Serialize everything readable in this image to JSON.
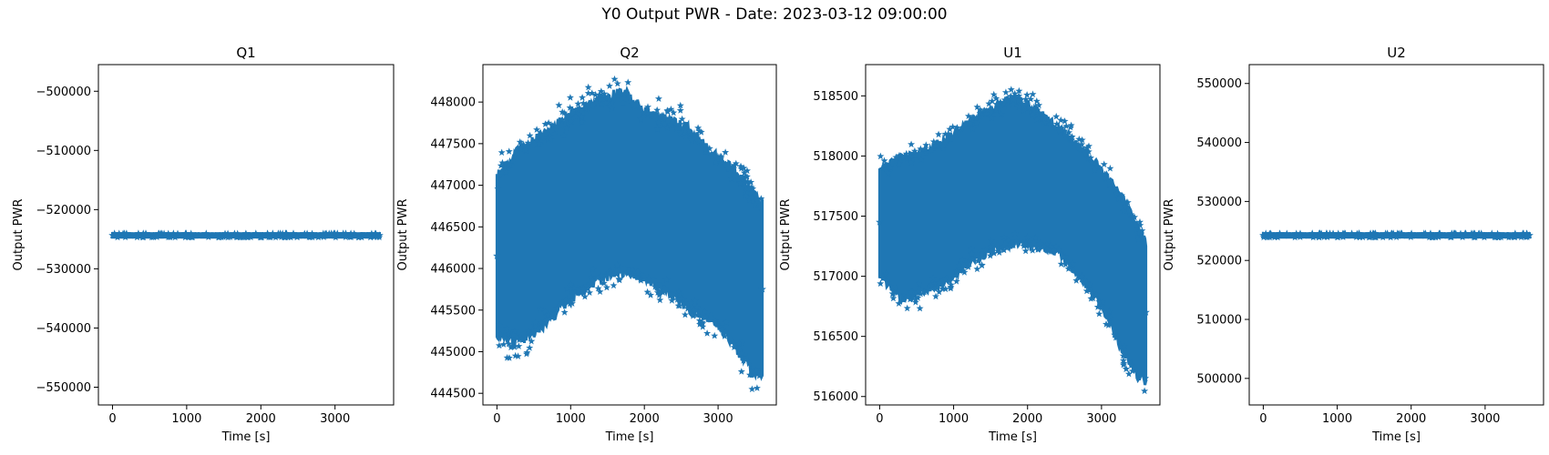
{
  "figure": {
    "suptitle": "Y0 Output PWR - Date: 2023-03-12 09:00:00"
  },
  "colors": {
    "series": "#1f77b4",
    "axis": "#000000"
  },
  "chart_data": [
    {
      "type": "scatter",
      "title": "Q1",
      "xlabel": "Time [s]",
      "ylabel": "Output PWR",
      "marker": "star",
      "xlim": [
        -190,
        3790
      ],
      "ylim": [
        -553000,
        -495500
      ],
      "xticks": [
        0,
        1000,
        2000,
        3000
      ],
      "xtick_labels": [
        "0",
        "1000",
        "2000",
        "3000"
      ],
      "yticks": [
        -550000,
        -540000,
        -530000,
        -520000,
        -510000,
        -500000
      ],
      "ytick_labels": [
        "−550000",
        "−540000",
        "−530000",
        "−520000",
        "−510000",
        "−500000"
      ],
      "x_range": [
        0,
        3600
      ],
      "y_band": [
        {
          "x": 0,
          "y_min": -524700,
          "y_max": -524000
        },
        {
          "x": 3600,
          "y_min": -524700,
          "y_max": -524000
        }
      ]
    },
    {
      "type": "scatter",
      "title": "Q2",
      "xlabel": "Time [s]",
      "ylabel": "Output PWR",
      "marker": "star",
      "xlim": [
        -190,
        3790
      ],
      "ylim": [
        444360,
        448450
      ],
      "xticks": [
        0,
        1000,
        2000,
        3000
      ],
      "xtick_labels": [
        "0",
        "1000",
        "2000",
        "3000"
      ],
      "yticks": [
        444500,
        445000,
        445500,
        446000,
        446500,
        447000,
        447500,
        448000
      ],
      "ytick_labels": [
        "444500",
        "445000",
        "445500",
        "446000",
        "446500",
        "447000",
        "447500",
        "448000"
      ],
      "x_range": [
        0,
        3600
      ],
      "y_band": [
        {
          "x": 0,
          "y_min": 445100,
          "y_max": 447200
        },
        {
          "x": 250,
          "y_min": 445000,
          "y_max": 447500
        },
        {
          "x": 500,
          "y_min": 445100,
          "y_max": 447650
        },
        {
          "x": 800,
          "y_min": 445350,
          "y_max": 447850
        },
        {
          "x": 1100,
          "y_min": 445600,
          "y_max": 448000
        },
        {
          "x": 1400,
          "y_min": 445750,
          "y_max": 448150
        },
        {
          "x": 1700,
          "y_min": 445850,
          "y_max": 448250
        },
        {
          "x": 2000,
          "y_min": 445800,
          "y_max": 448000
        },
        {
          "x": 2300,
          "y_min": 445600,
          "y_max": 447900
        },
        {
          "x": 2600,
          "y_min": 445400,
          "y_max": 447800
        },
        {
          "x": 2900,
          "y_min": 445300,
          "y_max": 447500
        },
        {
          "x": 3200,
          "y_min": 445000,
          "y_max": 447300
        },
        {
          "x": 3450,
          "y_min": 444650,
          "y_max": 447050
        },
        {
          "x": 3600,
          "y_min": 444600,
          "y_max": 446900
        }
      ]
    },
    {
      "type": "scatter",
      "title": "U1",
      "xlabel": "Time [s]",
      "ylabel": "Output PWR",
      "marker": "star",
      "xlim": [
        -190,
        3790
      ],
      "ylim": [
        515930,
        518760
      ],
      "xticks": [
        0,
        1000,
        2000,
        3000
      ],
      "xtick_labels": [
        "0",
        "1000",
        "2000",
        "3000"
      ],
      "yticks": [
        516000,
        516500,
        517000,
        517500,
        518000,
        518500
      ],
      "ytick_labels": [
        "516000",
        "516500",
        "517000",
        "517500",
        "518000",
        "518500"
      ],
      "x_range": [
        0,
        3600
      ],
      "y_band": [
        {
          "x": 0,
          "y_min": 516950,
          "y_max": 517950
        },
        {
          "x": 300,
          "y_min": 516750,
          "y_max": 518050
        },
        {
          "x": 600,
          "y_min": 516800,
          "y_max": 518100
        },
        {
          "x": 900,
          "y_min": 516900,
          "y_max": 518200
        },
        {
          "x": 1200,
          "y_min": 517050,
          "y_max": 518350
        },
        {
          "x": 1500,
          "y_min": 517150,
          "y_max": 518450
        },
        {
          "x": 1800,
          "y_min": 517200,
          "y_max": 518550
        },
        {
          "x": 2100,
          "y_min": 517200,
          "y_max": 518450
        },
        {
          "x": 2400,
          "y_min": 517150,
          "y_max": 518300
        },
        {
          "x": 2700,
          "y_min": 516950,
          "y_max": 518150
        },
        {
          "x": 3000,
          "y_min": 516700,
          "y_max": 517950
        },
        {
          "x": 3300,
          "y_min": 516300,
          "y_max": 517700
        },
        {
          "x": 3500,
          "y_min": 516100,
          "y_max": 517450
        },
        {
          "x": 3600,
          "y_min": 516050,
          "y_max": 517350
        }
      ]
    },
    {
      "type": "scatter",
      "title": "U2",
      "xlabel": "Time [s]",
      "ylabel": "Output PWR",
      "marker": "star",
      "xlim": [
        -190,
        3790
      ],
      "ylim": [
        495500,
        553200
      ],
      "xticks": [
        0,
        1000,
        2000,
        3000
      ],
      "xtick_labels": [
        "0",
        "1000",
        "2000",
        "3000"
      ],
      "yticks": [
        500000,
        510000,
        520000,
        530000,
        540000,
        550000
      ],
      "ytick_labels": [
        "500000",
        "510000",
        "520000",
        "530000",
        "540000",
        "550000"
      ],
      "x_range": [
        0,
        3600
      ],
      "y_band": [
        {
          "x": 0,
          "y_min": 523900,
          "y_max": 524600
        },
        {
          "x": 3600,
          "y_min": 523900,
          "y_max": 524600
        }
      ]
    }
  ]
}
